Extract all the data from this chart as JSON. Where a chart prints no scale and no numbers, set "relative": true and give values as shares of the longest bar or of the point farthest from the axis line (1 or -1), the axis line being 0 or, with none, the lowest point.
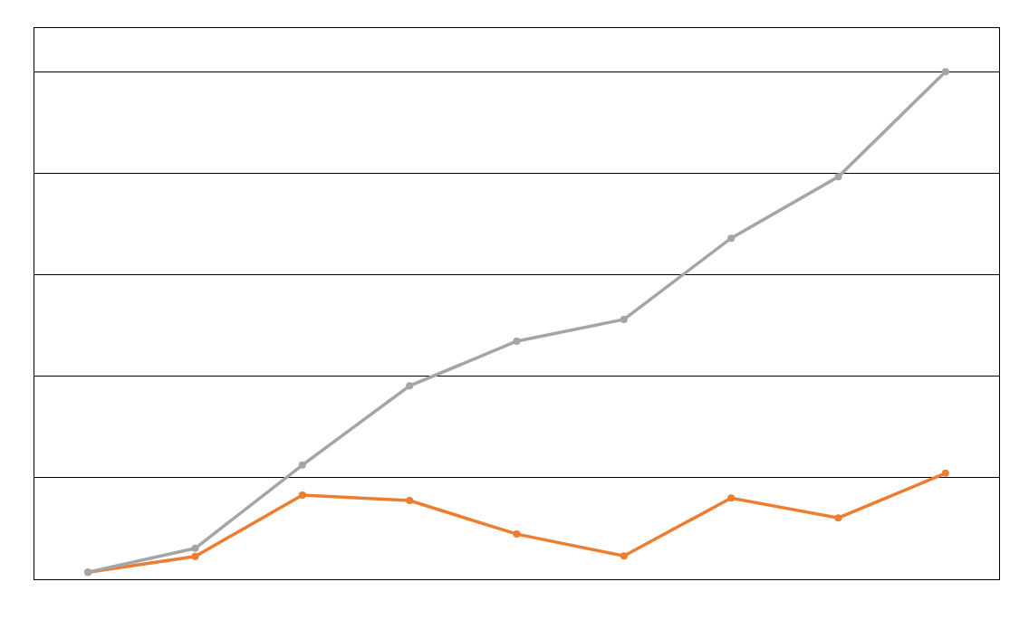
{
  "chart_data": {
    "type": "line",
    "relative": true,
    "categories": [
      null,
      null,
      null,
      null,
      null,
      null,
      null,
      null,
      null
    ],
    "series": [
      {
        "color": "#ed7d31",
        "values": [
          0.014,
          0.045,
          0.166,
          0.155,
          0.089,
          0.046,
          0.16,
          0.121,
          0.209
        ]
      },
      {
        "color": "#a5a5a5",
        "values": [
          0.014,
          0.061,
          0.225,
          0.381,
          0.469,
          0.512,
          0.672,
          0.793,
          1
        ]
      }
    ],
    "grid": "y",
    "marker": "circle",
    "line_style": "solid"
  }
}
